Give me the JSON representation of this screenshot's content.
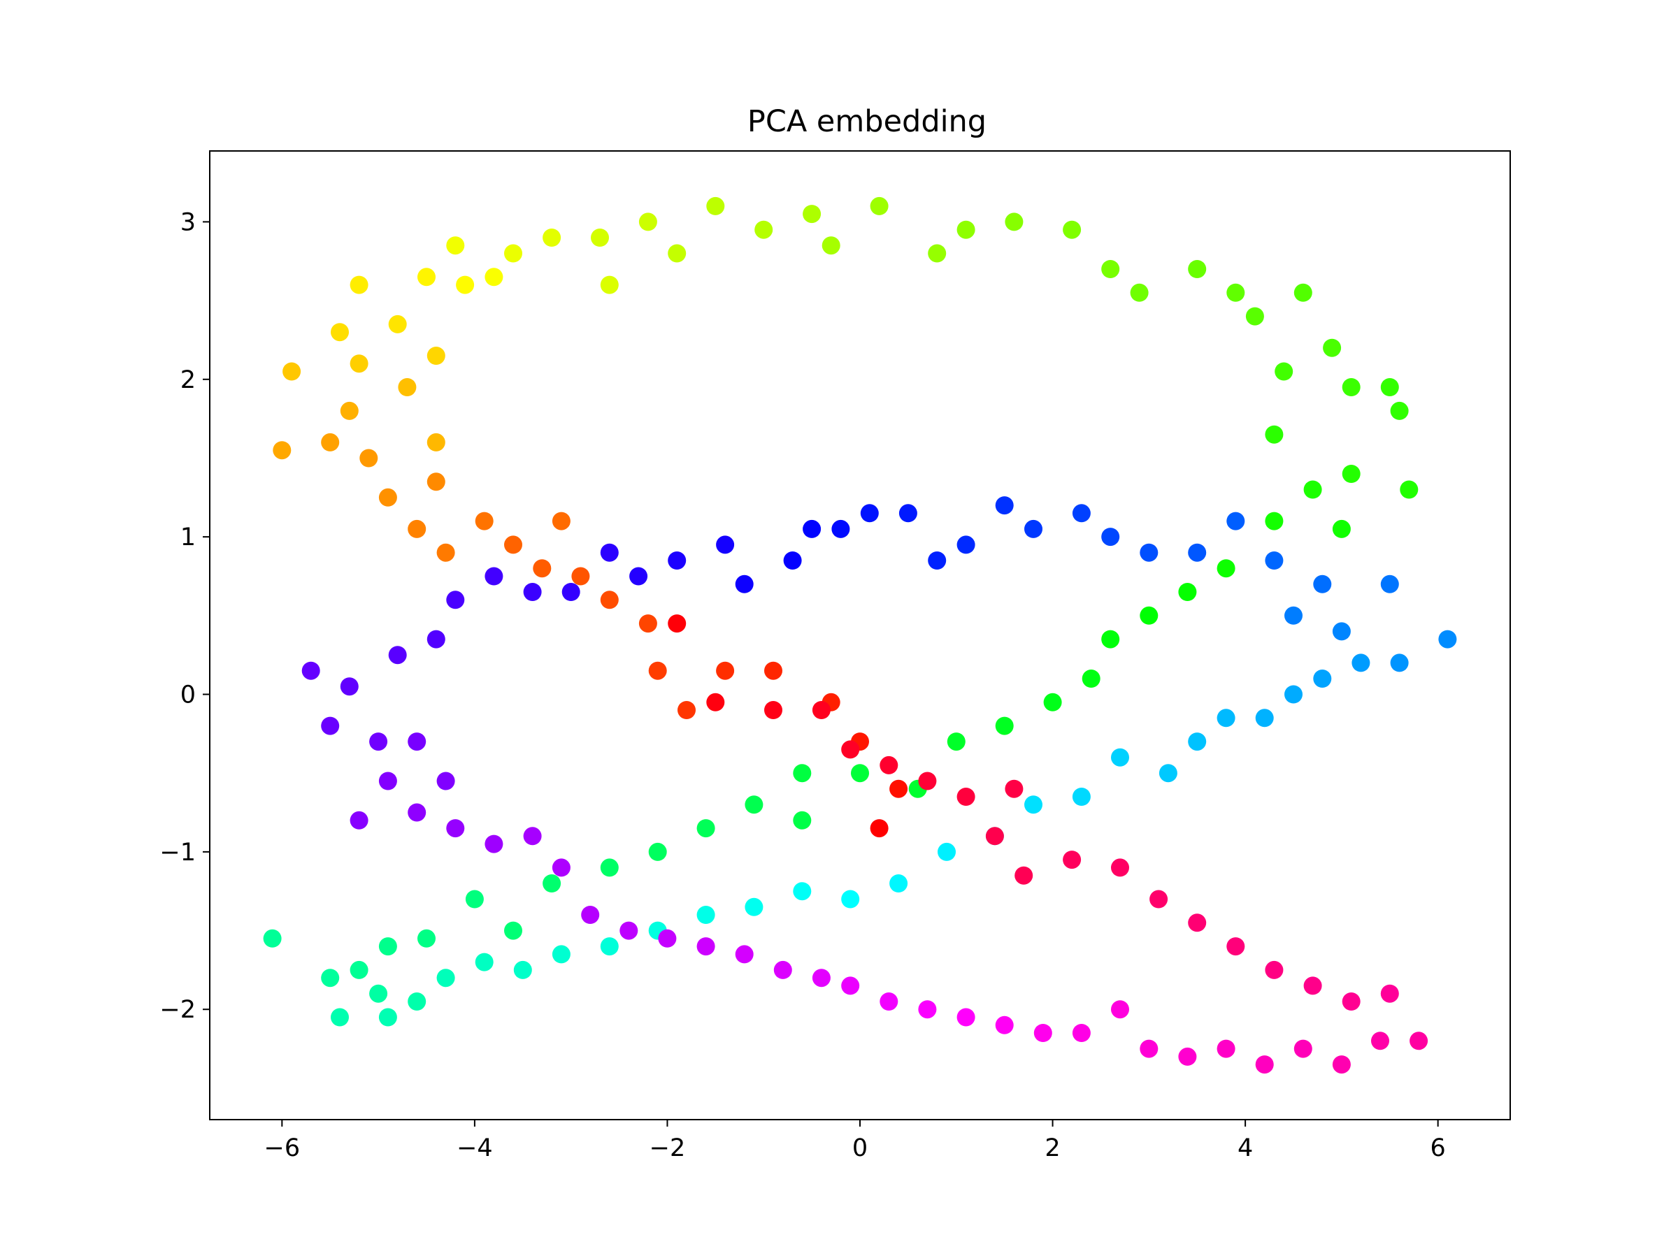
{
  "chart_data": {
    "type": "scatter",
    "title": "PCA embedding",
    "xlabel": "",
    "ylabel": "",
    "xlim": [
      -6.75,
      6.75
    ],
    "ylim": [
      -2.7,
      3.45
    ],
    "xticks": [
      -6,
      -4,
      -2,
      0,
      2,
      4,
      6
    ],
    "yticks": [
      -2,
      -1,
      0,
      1,
      2,
      3
    ],
    "xtick_labels": [
      "−6",
      "−4",
      "−2",
      "0",
      "2",
      "4",
      "6"
    ],
    "ytick_labels": [
      "−2",
      "−1",
      "0",
      "1",
      "2",
      "3"
    ],
    "grid": false,
    "legend": "none",
    "colormap": "hsv",
    "point_color": "color encodes position along the closed curve (hue 0–1)",
    "points": [
      {
        "x": 0.2,
        "y": -0.85,
        "c": 0.0
      },
      {
        "x": 0.4,
        "y": -0.6,
        "c": 0.01
      },
      {
        "x": 0.0,
        "y": -0.3,
        "c": 0.015
      },
      {
        "x": -0.3,
        "y": -0.05,
        "c": 0.02
      },
      {
        "x": -0.9,
        "y": 0.15,
        "c": 0.025
      },
      {
        "x": -1.4,
        "y": 0.15,
        "c": 0.03
      },
      {
        "x": -1.8,
        "y": -0.1,
        "c": 0.035
      },
      {
        "x": -2.1,
        "y": 0.15,
        "c": 0.04
      },
      {
        "x": -2.2,
        "y": 0.45,
        "c": 0.045
      },
      {
        "x": -2.6,
        "y": 0.6,
        "c": 0.05
      },
      {
        "x": -2.9,
        "y": 0.75,
        "c": 0.055
      },
      {
        "x": -3.3,
        "y": 0.8,
        "c": 0.06
      },
      {
        "x": -3.6,
        "y": 0.95,
        "c": 0.065
      },
      {
        "x": -3.1,
        "y": 1.1,
        "c": 0.07
      },
      {
        "x": -3.9,
        "y": 1.1,
        "c": 0.075
      },
      {
        "x": -4.3,
        "y": 0.9,
        "c": 0.08
      },
      {
        "x": -4.6,
        "y": 1.05,
        "c": 0.085
      },
      {
        "x": -4.4,
        "y": 1.35,
        "c": 0.09
      },
      {
        "x": -4.9,
        "y": 1.25,
        "c": 0.095
      },
      {
        "x": -5.1,
        "y": 1.5,
        "c": 0.1
      },
      {
        "x": -5.5,
        "y": 1.6,
        "c": 0.105
      },
      {
        "x": -6.0,
        "y": 1.55,
        "c": 0.11
      },
      {
        "x": -5.3,
        "y": 1.8,
        "c": 0.115
      },
      {
        "x": -4.4,
        "y": 1.6,
        "c": 0.12
      },
      {
        "x": -4.7,
        "y": 1.95,
        "c": 0.125
      },
      {
        "x": -5.9,
        "y": 2.05,
        "c": 0.13
      },
      {
        "x": -5.2,
        "y": 2.1,
        "c": 0.135
      },
      {
        "x": -4.4,
        "y": 2.15,
        "c": 0.14
      },
      {
        "x": -5.4,
        "y": 2.3,
        "c": 0.145
      },
      {
        "x": -4.8,
        "y": 2.35,
        "c": 0.15
      },
      {
        "x": -5.2,
        "y": 2.6,
        "c": 0.155
      },
      {
        "x": -4.5,
        "y": 2.65,
        "c": 0.16
      },
      {
        "x": -4.1,
        "y": 2.6,
        "c": 0.165
      },
      {
        "x": -3.8,
        "y": 2.65,
        "c": 0.17
      },
      {
        "x": -4.2,
        "y": 2.85,
        "c": 0.175
      },
      {
        "x": -3.6,
        "y": 2.8,
        "c": 0.18
      },
      {
        "x": -3.2,
        "y": 2.9,
        "c": 0.185
      },
      {
        "x": -2.6,
        "y": 2.6,
        "c": 0.19
      },
      {
        "x": -2.7,
        "y": 2.9,
        "c": 0.195
      },
      {
        "x": -2.2,
        "y": 3.0,
        "c": 0.2
      },
      {
        "x": -1.9,
        "y": 2.8,
        "c": 0.205
      },
      {
        "x": -1.5,
        "y": 3.1,
        "c": 0.21
      },
      {
        "x": -1.0,
        "y": 2.95,
        "c": 0.215
      },
      {
        "x": -0.5,
        "y": 3.05,
        "c": 0.22
      },
      {
        "x": -0.3,
        "y": 2.85,
        "c": 0.225
      },
      {
        "x": 0.2,
        "y": 3.1,
        "c": 0.23
      },
      {
        "x": 0.8,
        "y": 2.8,
        "c": 0.235
      },
      {
        "x": 1.1,
        "y": 2.95,
        "c": 0.24
      },
      {
        "x": 1.6,
        "y": 3.0,
        "c": 0.245
      },
      {
        "x": 2.2,
        "y": 2.95,
        "c": 0.25
      },
      {
        "x": 2.6,
        "y": 2.7,
        "c": 0.255
      },
      {
        "x": 2.9,
        "y": 2.55,
        "c": 0.26
      },
      {
        "x": 3.5,
        "y": 2.7,
        "c": 0.265
      },
      {
        "x": 3.9,
        "y": 2.55,
        "c": 0.27
      },
      {
        "x": 4.1,
        "y": 2.4,
        "c": 0.275
      },
      {
        "x": 4.6,
        "y": 2.55,
        "c": 0.28
      },
      {
        "x": 4.9,
        "y": 2.2,
        "c": 0.285
      },
      {
        "x": 4.4,
        "y": 2.05,
        "c": 0.29
      },
      {
        "x": 5.1,
        "y": 1.95,
        "c": 0.295
      },
      {
        "x": 5.5,
        "y": 1.95,
        "c": 0.3
      },
      {
        "x": 5.6,
        "y": 1.8,
        "c": 0.302
      },
      {
        "x": 4.3,
        "y": 1.65,
        "c": 0.305
      },
      {
        "x": 5.1,
        "y": 1.4,
        "c": 0.31
      },
      {
        "x": 5.7,
        "y": 1.3,
        "c": 0.312
      },
      {
        "x": 4.7,
        "y": 1.3,
        "c": 0.315
      },
      {
        "x": 4.3,
        "y": 1.1,
        "c": 0.32
      },
      {
        "x": 5.0,
        "y": 1.05,
        "c": 0.322
      },
      {
        "x": 3.8,
        "y": 0.8,
        "c": 0.325
      },
      {
        "x": 3.4,
        "y": 0.65,
        "c": 0.33
      },
      {
        "x": 3.0,
        "y": 0.5,
        "c": 0.335
      },
      {
        "x": 2.6,
        "y": 0.35,
        "c": 0.34
      },
      {
        "x": 2.4,
        "y": 0.1,
        "c": 0.345
      },
      {
        "x": 2.0,
        "y": -0.05,
        "c": 0.35
      },
      {
        "x": 1.5,
        "y": -0.2,
        "c": 0.355
      },
      {
        "x": 1.0,
        "y": -0.3,
        "c": 0.36
      },
      {
        "x": 0.6,
        "y": -0.6,
        "c": 0.365
      },
      {
        "x": 0.0,
        "y": -0.5,
        "c": 0.37
      },
      {
        "x": -0.6,
        "y": -0.5,
        "c": 0.375
      },
      {
        "x": -0.6,
        "y": -0.8,
        "c": 0.38
      },
      {
        "x": -1.1,
        "y": -0.7,
        "c": 0.385
      },
      {
        "x": -1.6,
        "y": -0.85,
        "c": 0.39
      },
      {
        "x": -2.1,
        "y": -1.0,
        "c": 0.395
      },
      {
        "x": -2.6,
        "y": -1.1,
        "c": 0.4
      },
      {
        "x": -3.2,
        "y": -1.2,
        "c": 0.405
      },
      {
        "x": -3.6,
        "y": -1.5,
        "c": 0.41
      },
      {
        "x": -4.0,
        "y": -1.3,
        "c": 0.415
      },
      {
        "x": -4.5,
        "y": -1.55,
        "c": 0.42
      },
      {
        "x": -4.9,
        "y": -1.6,
        "c": 0.425
      },
      {
        "x": -5.2,
        "y": -1.75,
        "c": 0.43
      },
      {
        "x": -6.1,
        "y": -1.55,
        "c": 0.432
      },
      {
        "x": -5.5,
        "y": -1.8,
        "c": 0.435
      },
      {
        "x": -5.0,
        "y": -1.9,
        "c": 0.44
      },
      {
        "x": -4.6,
        "y": -1.95,
        "c": 0.445
      },
      {
        "x": -5.4,
        "y": -2.05,
        "c": 0.448
      },
      {
        "x": -4.9,
        "y": -2.05,
        "c": 0.45
      },
      {
        "x": -4.3,
        "y": -1.8,
        "c": 0.455
      },
      {
        "x": -3.9,
        "y": -1.7,
        "c": 0.46
      },
      {
        "x": -3.5,
        "y": -1.75,
        "c": 0.465
      },
      {
        "x": -3.1,
        "y": -1.65,
        "c": 0.47
      },
      {
        "x": -2.6,
        "y": -1.6,
        "c": 0.475
      },
      {
        "x": -2.1,
        "y": -1.5,
        "c": 0.48
      },
      {
        "x": -1.6,
        "y": -1.4,
        "c": 0.485
      },
      {
        "x": -1.1,
        "y": -1.35,
        "c": 0.49
      },
      {
        "x": -0.6,
        "y": -1.25,
        "c": 0.495
      },
      {
        "x": -0.1,
        "y": -1.3,
        "c": 0.5
      },
      {
        "x": 0.4,
        "y": -1.2,
        "c": 0.505
      },
      {
        "x": 0.9,
        "y": -1.0,
        "c": 0.51
      },
      {
        "x": 1.4,
        "y": -0.9,
        "c": 0.515
      },
      {
        "x": 1.8,
        "y": -0.7,
        "c": 0.52
      },
      {
        "x": 2.3,
        "y": -0.65,
        "c": 0.525
      },
      {
        "x": 2.7,
        "y": -0.4,
        "c": 0.53
      },
      {
        "x": 3.2,
        "y": -0.5,
        "c": 0.535
      },
      {
        "x": 3.5,
        "y": -0.3,
        "c": 0.54
      },
      {
        "x": 3.8,
        "y": -0.15,
        "c": 0.545
      },
      {
        "x": 4.2,
        "y": -0.15,
        "c": 0.55
      },
      {
        "x": 4.5,
        "y": 0.0,
        "c": 0.555
      },
      {
        "x": 4.8,
        "y": 0.1,
        "c": 0.56
      },
      {
        "x": 5.2,
        "y": 0.2,
        "c": 0.565
      },
      {
        "x": 5.6,
        "y": 0.2,
        "c": 0.57
      },
      {
        "x": 6.1,
        "y": 0.35,
        "c": 0.575
      },
      {
        "x": 5.0,
        "y": 0.4,
        "c": 0.58
      },
      {
        "x": 4.5,
        "y": 0.5,
        "c": 0.585
      },
      {
        "x": 5.5,
        "y": 0.7,
        "c": 0.59
      },
      {
        "x": 4.8,
        "y": 0.7,
        "c": 0.595
      },
      {
        "x": 4.3,
        "y": 0.85,
        "c": 0.6
      },
      {
        "x": 3.9,
        "y": 1.1,
        "c": 0.605
      },
      {
        "x": 3.5,
        "y": 0.9,
        "c": 0.61
      },
      {
        "x": 3.0,
        "y": 0.9,
        "c": 0.615
      },
      {
        "x": 2.6,
        "y": 1.0,
        "c": 0.62
      },
      {
        "x": 2.3,
        "y": 1.15,
        "c": 0.625
      },
      {
        "x": 1.8,
        "y": 1.05,
        "c": 0.63
      },
      {
        "x": 1.5,
        "y": 1.2,
        "c": 0.635
      },
      {
        "x": 1.1,
        "y": 0.95,
        "c": 0.64
      },
      {
        "x": 0.8,
        "y": 0.85,
        "c": 0.645
      },
      {
        "x": 0.5,
        "y": 1.15,
        "c": 0.65
      },
      {
        "x": 0.1,
        "y": 1.15,
        "c": 0.655
      },
      {
        "x": -0.2,
        "y": 1.05,
        "c": 0.66
      },
      {
        "x": -0.5,
        "y": 1.05,
        "c": 0.665
      },
      {
        "x": -0.7,
        "y": 0.85,
        "c": 0.67
      },
      {
        "x": -1.2,
        "y": 0.7,
        "c": 0.675
      },
      {
        "x": -1.4,
        "y": 0.95,
        "c": 0.68
      },
      {
        "x": -1.9,
        "y": 0.85,
        "c": 0.685
      },
      {
        "x": -2.3,
        "y": 0.75,
        "c": 0.69
      },
      {
        "x": -2.6,
        "y": 0.9,
        "c": 0.695
      },
      {
        "x": -3.0,
        "y": 0.65,
        "c": 0.7
      },
      {
        "x": -3.4,
        "y": 0.65,
        "c": 0.705
      },
      {
        "x": -3.8,
        "y": 0.75,
        "c": 0.71
      },
      {
        "x": -4.2,
        "y": 0.6,
        "c": 0.715
      },
      {
        "x": -4.4,
        "y": 0.35,
        "c": 0.72
      },
      {
        "x": -4.8,
        "y": 0.25,
        "c": 0.725
      },
      {
        "x": -5.3,
        "y": 0.05,
        "c": 0.73
      },
      {
        "x": -5.7,
        "y": 0.15,
        "c": 0.732
      },
      {
        "x": -5.5,
        "y": -0.2,
        "c": 0.735
      },
      {
        "x": -5.0,
        "y": -0.3,
        "c": 0.74
      },
      {
        "x": -4.6,
        "y": -0.3,
        "c": 0.745
      },
      {
        "x": -4.3,
        "y": -0.55,
        "c": 0.75
      },
      {
        "x": -4.9,
        "y": -0.55,
        "c": 0.752
      },
      {
        "x": -5.2,
        "y": -0.8,
        "c": 0.755
      },
      {
        "x": -4.6,
        "y": -0.75,
        "c": 0.76
      },
      {
        "x": -4.2,
        "y": -0.85,
        "c": 0.765
      },
      {
        "x": -3.8,
        "y": -0.95,
        "c": 0.77
      },
      {
        "x": -3.4,
        "y": -0.9,
        "c": 0.775
      },
      {
        "x": -3.1,
        "y": -1.1,
        "c": 0.78
      },
      {
        "x": -2.8,
        "y": -1.4,
        "c": 0.785
      },
      {
        "x": -2.4,
        "y": -1.5,
        "c": 0.79
      },
      {
        "x": -2.0,
        "y": -1.55,
        "c": 0.795
      },
      {
        "x": -1.6,
        "y": -1.6,
        "c": 0.8
      },
      {
        "x": -1.2,
        "y": -1.65,
        "c": 0.805
      },
      {
        "x": -0.8,
        "y": -1.75,
        "c": 0.81
      },
      {
        "x": -0.4,
        "y": -1.8,
        "c": 0.815
      },
      {
        "x": -0.1,
        "y": -1.85,
        "c": 0.82
      },
      {
        "x": 0.3,
        "y": -1.95,
        "c": 0.825
      },
      {
        "x": 0.7,
        "y": -2.0,
        "c": 0.83
      },
      {
        "x": 1.1,
        "y": -2.05,
        "c": 0.835
      },
      {
        "x": 1.5,
        "y": -2.1,
        "c": 0.84
      },
      {
        "x": 1.9,
        "y": -2.15,
        "c": 0.845
      },
      {
        "x": 2.3,
        "y": -2.15,
        "c": 0.85
      },
      {
        "x": 2.7,
        "y": -2.0,
        "c": 0.855
      },
      {
        "x": 3.0,
        "y": -2.25,
        "c": 0.86
      },
      {
        "x": 3.4,
        "y": -2.3,
        "c": 0.865
      },
      {
        "x": 3.8,
        "y": -2.25,
        "c": 0.87
      },
      {
        "x": 4.2,
        "y": -2.35,
        "c": 0.875
      },
      {
        "x": 4.6,
        "y": -2.25,
        "c": 0.88
      },
      {
        "x": 5.0,
        "y": -2.35,
        "c": 0.885
      },
      {
        "x": 5.4,
        "y": -2.2,
        "c": 0.89
      },
      {
        "x": 5.8,
        "y": -2.2,
        "c": 0.895
      },
      {
        "x": 5.5,
        "y": -1.9,
        "c": 0.9
      },
      {
        "x": 5.1,
        "y": -1.95,
        "c": 0.905
      },
      {
        "x": 4.7,
        "y": -1.85,
        "c": 0.91
      },
      {
        "x": 4.3,
        "y": -1.75,
        "c": 0.915
      },
      {
        "x": 3.9,
        "y": -1.6,
        "c": 0.92
      },
      {
        "x": 3.5,
        "y": -1.45,
        "c": 0.925
      },
      {
        "x": 3.1,
        "y": -1.3,
        "c": 0.93
      },
      {
        "x": 2.7,
        "y": -1.1,
        "c": 0.935
      },
      {
        "x": 2.2,
        "y": -1.05,
        "c": 0.94
      },
      {
        "x": 1.7,
        "y": -1.15,
        "c": 0.945
      },
      {
        "x": 1.4,
        "y": -0.9,
        "c": 0.95
      },
      {
        "x": 1.6,
        "y": -0.6,
        "c": 0.955
      },
      {
        "x": 1.1,
        "y": -0.65,
        "c": 0.96
      },
      {
        "x": 0.7,
        "y": -0.55,
        "c": 0.965
      },
      {
        "x": 0.3,
        "y": -0.45,
        "c": 0.97
      },
      {
        "x": -0.1,
        "y": -0.35,
        "c": 0.975
      },
      {
        "x": -0.4,
        "y": -0.1,
        "c": 0.98
      },
      {
        "x": -0.9,
        "y": -0.1,
        "c": 0.985
      },
      {
        "x": -1.5,
        "y": -0.05,
        "c": 0.99
      },
      {
        "x": -1.9,
        "y": 0.45,
        "c": 0.995
      }
    ]
  }
}
